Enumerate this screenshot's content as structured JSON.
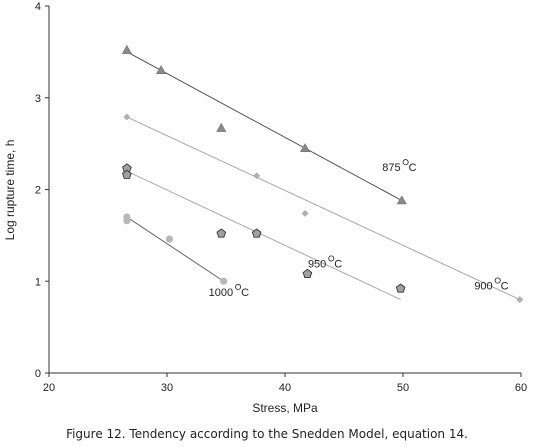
{
  "caption": "Figure 12.  Tendency according to the Snedden Model, equation 14.",
  "chart_data": {
    "type": "scatter",
    "title": "",
    "xlabel": "Stress, MPa",
    "ylabel": "Log rupture time, h",
    "xlim": [
      20,
      60
    ],
    "ylim": [
      0,
      4
    ],
    "xticks": [
      20,
      30,
      40,
      50,
      60
    ],
    "yticks": [
      0,
      1,
      2,
      3,
      4
    ],
    "grid": false,
    "legend": "none",
    "series": [
      {
        "marker": "triangle",
        "color": "#8a8a8a",
        "label_text": "875",
        "label_pos": {
          "x": 49.8,
          "y": 2.2
        },
        "points": [
          {
            "x": 26.6,
            "y": 3.52
          },
          {
            "x": 29.5,
            "y": 3.3
          },
          {
            "x": 34.6,
            "y": 2.67
          },
          {
            "x": 41.7,
            "y": 2.45
          },
          {
            "x": 49.9,
            "y": 1.88
          }
        ],
        "fit": [
          [
            26.6,
            3.5
          ],
          [
            49.9,
            1.88
          ]
        ]
      },
      {
        "marker": "diamond",
        "color": "#b0b0b0",
        "label_text": "900",
        "label_pos": {
          "x": 57.6,
          "y": 0.91
        },
        "points": [
          {
            "x": 26.6,
            "y": 2.79
          },
          {
            "x": 37.6,
            "y": 2.15
          },
          {
            "x": 41.7,
            "y": 1.74
          },
          {
            "x": 59.9,
            "y": 0.8
          }
        ],
        "fit": [
          [
            26.6,
            2.79
          ],
          [
            59.9,
            0.8
          ]
        ]
      },
      {
        "marker": "pentagon",
        "color": "#a0a0a0",
        "label_text": "950",
        "label_pos": {
          "x": 43.5,
          "y": 1.15
        },
        "points": [
          {
            "x": 26.6,
            "y": 2.23
          },
          {
            "x": 26.6,
            "y": 2.16
          },
          {
            "x": 34.6,
            "y": 1.52
          },
          {
            "x": 37.6,
            "y": 1.52
          },
          {
            "x": 41.9,
            "y": 1.08
          },
          {
            "x": 49.8,
            "y": 0.92
          }
        ],
        "fit": [
          [
            26.6,
            2.2
          ],
          [
            49.8,
            0.8
          ]
        ]
      },
      {
        "marker": "circle",
        "color": "#b8b8b8",
        "label_text": "1000",
        "label_pos": {
          "x": 35.6,
          "y": 0.84
        },
        "points": [
          {
            "x": 26.6,
            "y": 1.7
          },
          {
            "x": 26.6,
            "y": 1.66
          },
          {
            "x": 30.2,
            "y": 1.46
          },
          {
            "x": 34.8,
            "y": 1.0
          }
        ],
        "fit": [
          [
            26.6,
            1.7
          ],
          [
            34.8,
            1.0
          ]
        ]
      }
    ]
  }
}
